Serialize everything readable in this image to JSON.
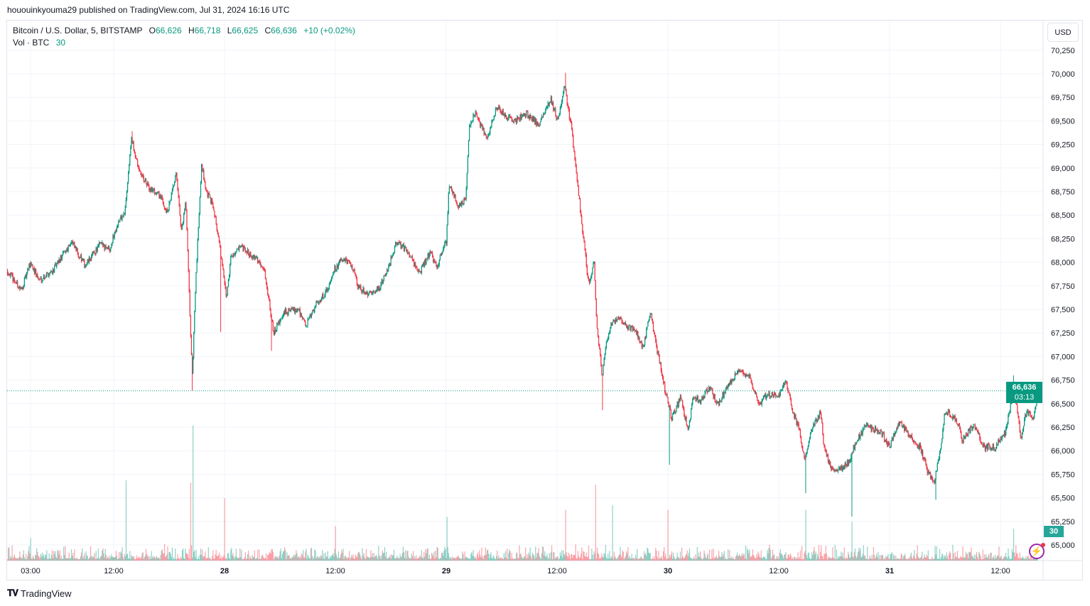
{
  "published": "hououinkyouma29 published on TradingView.com, Jul 31, 2024 16:16 UTC",
  "legend": {
    "symbol": "Bitcoin / U.S. Dollar, 5, BITSTAMP",
    "o_label": "O",
    "o": "66,626",
    "h_label": "H",
    "h": "66,718",
    "l_label": "L",
    "l": "66,625",
    "c_label": "C",
    "c": "66,636",
    "change": "+10 (+0.02%)",
    "vol_label": "Vol · BTC",
    "vol": "30"
  },
  "currency_button": "USD",
  "last_price": {
    "value": "66,636",
    "countdown": "03:13"
  },
  "volume_tag": "30",
  "brand": {
    "logo": "TV",
    "name": "TradingView"
  },
  "icons": {
    "alert": "lightning-icon"
  },
  "colors": {
    "up": "#089981",
    "down": "#f23645",
    "grid": "#f0f3fa",
    "price_line": "#089981"
  },
  "chart_data": {
    "type": "candlestick",
    "title": "Bitcoin / U.S. Dollar, 5, BITSTAMP",
    "interval_minutes": 5,
    "x_unit": "hours since Jul 27 00:00 UTC",
    "xlim": [
      0.5,
      112.2
    ],
    "ylim": [
      64900,
      70350
    ],
    "y_ticks": [
      65000,
      65250,
      65500,
      65750,
      66000,
      66250,
      66500,
      66750,
      67000,
      67250,
      67500,
      67750,
      68000,
      68250,
      68500,
      68750,
      69000,
      69250,
      69500,
      69750,
      70000,
      70250
    ],
    "y_tick_labels": [
      "65,000",
      "65,250",
      "65,500",
      "65,750",
      "66,000",
      "66,250",
      "66,500",
      "66,750",
      "67,000",
      "67,250",
      "67,500",
      "67,750",
      "68,000",
      "68,250",
      "68,500",
      "68,750",
      "69,000",
      "69,250",
      "69,500",
      "69,750",
      "70,000",
      "70,250"
    ],
    "x_ticks": [
      3,
      12,
      24,
      36,
      48,
      60,
      72,
      84,
      96,
      108
    ],
    "x_tick_labels": [
      "03:00",
      "12:00",
      "28",
      "12:00",
      "29",
      "12:00",
      "30",
      "12:00",
      "31",
      "12:00"
    ],
    "x_tick_bold": [
      false,
      false,
      true,
      false,
      true,
      false,
      true,
      false,
      true,
      false
    ],
    "last_close": 66636,
    "price_path": [
      [
        0.5,
        67910
      ],
      [
        2.0,
        67700
      ],
      [
        3.0,
        68000
      ],
      [
        3.9,
        67810
      ],
      [
        5.5,
        67920
      ],
      [
        7.4,
        68220
      ],
      [
        8.9,
        67960
      ],
      [
        10.5,
        68190
      ],
      [
        11.6,
        68150
      ],
      [
        12.4,
        68410
      ],
      [
        13.2,
        68520
      ],
      [
        13.9,
        69310
      ],
      [
        14.7,
        68980
      ],
      [
        15.8,
        68790
      ],
      [
        17.0,
        68710
      ],
      [
        17.8,
        68520
      ],
      [
        18.8,
        68940
      ],
      [
        19.3,
        68300
      ],
      [
        19.8,
        68640
      ],
      [
        20.5,
        66790
      ],
      [
        20.8,
        67620
      ],
      [
        21.5,
        69050
      ],
      [
        22.0,
        68750
      ],
      [
        22.8,
        68600
      ],
      [
        23.5,
        68150
      ],
      [
        24.2,
        67620
      ],
      [
        24.7,
        68070
      ],
      [
        25.8,
        68150
      ],
      [
        27.0,
        68070
      ],
      [
        28.2,
        67960
      ],
      [
        28.9,
        67550
      ],
      [
        29.3,
        67240
      ],
      [
        30.5,
        67470
      ],
      [
        32.0,
        67510
      ],
      [
        32.8,
        67320
      ],
      [
        33.9,
        67550
      ],
      [
        35.1,
        67700
      ],
      [
        35.8,
        67920
      ],
      [
        36.8,
        68030
      ],
      [
        37.8,
        67960
      ],
      [
        38.5,
        67730
      ],
      [
        39.7,
        67660
      ],
      [
        40.8,
        67730
      ],
      [
        41.8,
        67960
      ],
      [
        42.6,
        68220
      ],
      [
        43.9,
        68110
      ],
      [
        45.1,
        67880
      ],
      [
        46.2,
        68110
      ],
      [
        47.0,
        67960
      ],
      [
        48.0,
        68220
      ],
      [
        48.3,
        68830
      ],
      [
        49.3,
        68600
      ],
      [
        50.1,
        68670
      ],
      [
        50.5,
        69430
      ],
      [
        51.1,
        69580
      ],
      [
        52.4,
        69310
      ],
      [
        53.5,
        69650
      ],
      [
        54.5,
        69540
      ],
      [
        55.5,
        69500
      ],
      [
        56.6,
        69580
      ],
      [
        58.0,
        69470
      ],
      [
        59.3,
        69730
      ],
      [
        60.1,
        69500
      ],
      [
        60.8,
        69880
      ],
      [
        61.6,
        69390
      ],
      [
        62.2,
        68830
      ],
      [
        62.8,
        68300
      ],
      [
        63.4,
        67770
      ],
      [
        64.0,
        68000
      ],
      [
        64.3,
        67320
      ],
      [
        64.9,
        66790
      ],
      [
        65.2,
        67090
      ],
      [
        65.8,
        67320
      ],
      [
        66.6,
        67430
      ],
      [
        67.4,
        67320
      ],
      [
        68.5,
        67280
      ],
      [
        69.3,
        67090
      ],
      [
        70.1,
        67470
      ],
      [
        70.8,
        67090
      ],
      [
        71.6,
        66680
      ],
      [
        72.4,
        66340
      ],
      [
        73.4,
        66570
      ],
      [
        74.2,
        66190
      ],
      [
        74.7,
        66570
      ],
      [
        75.5,
        66530
      ],
      [
        76.5,
        66680
      ],
      [
        77.4,
        66490
      ],
      [
        78.5,
        66680
      ],
      [
        79.7,
        66870
      ],
      [
        80.8,
        66790
      ],
      [
        81.8,
        66490
      ],
      [
        82.8,
        66600
      ],
      [
        83.9,
        66570
      ],
      [
        84.7,
        66750
      ],
      [
        85.5,
        66420
      ],
      [
        86.2,
        66230
      ],
      [
        86.8,
        65890
      ],
      [
        87.4,
        66190
      ],
      [
        88.5,
        66420
      ],
      [
        88.9,
        66040
      ],
      [
        89.7,
        65810
      ],
      [
        90.8,
        65810
      ],
      [
        91.6,
        65890
      ],
      [
        92.4,
        66110
      ],
      [
        93.5,
        66270
      ],
      [
        95.1,
        66190
      ],
      [
        96.0,
        66040
      ],
      [
        97.0,
        66300
      ],
      [
        98.2,
        66150
      ],
      [
        99.3,
        66040
      ],
      [
        100.1,
        65780
      ],
      [
        100.8,
        65660
      ],
      [
        101.4,
        65960
      ],
      [
        102.0,
        66420
      ],
      [
        103.2,
        66340
      ],
      [
        103.9,
        66110
      ],
      [
        105.1,
        66270
      ],
      [
        106.2,
        66040
      ],
      [
        107.4,
        66040
      ],
      [
        108.5,
        66190
      ],
      [
        109.1,
        66490
      ],
      [
        109.5,
        66680
      ],
      [
        110.2,
        66110
      ],
      [
        110.8,
        66420
      ],
      [
        111.6,
        66340
      ],
      [
        112.0,
        66636
      ]
    ],
    "extremes": [
      {
        "t": 14.0,
        "high": 69390
      },
      {
        "t": 20.5,
        "low": 66640
      },
      {
        "t": 23.6,
        "low": 67260
      },
      {
        "t": 29.1,
        "low": 67060
      },
      {
        "t": 60.9,
        "high": 70010
      },
      {
        "t": 64.9,
        "low": 66430
      },
      {
        "t": 72.2,
        "low": 65850
      },
      {
        "t": 86.9,
        "low": 65550
      },
      {
        "t": 91.9,
        "low": 65300
      },
      {
        "t": 101.0,
        "low": 65480
      },
      {
        "t": 109.4,
        "high": 66800
      }
    ],
    "volume_spikes": [
      [
        3.0,
        29
      ],
      [
        13.3,
        103
      ],
      [
        20.3,
        100
      ],
      [
        20.6,
        173
      ],
      [
        24.0,
        80
      ],
      [
        36.0,
        44
      ],
      [
        48.1,
        56
      ],
      [
        60.9,
        65
      ],
      [
        64.2,
        97
      ],
      [
        66.0,
        71
      ],
      [
        72.0,
        65
      ],
      [
        86.9,
        65
      ],
      [
        91.9,
        50
      ],
      [
        109.4,
        41
      ]
    ],
    "volume_base": 8
  }
}
